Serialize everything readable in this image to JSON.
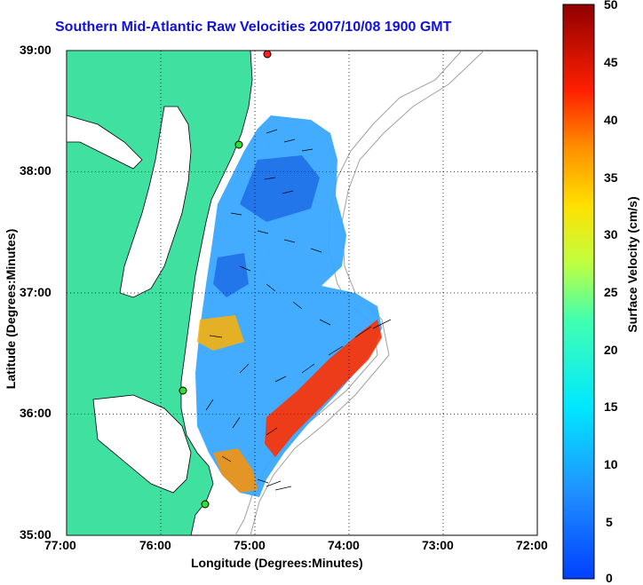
{
  "title": "Southern Mid-Atlantic Raw Velocities 2007/10/08 1900 GMT",
  "xlabel": "Longitude (Degrees:Minutes)",
  "ylabel": "Latitude (Degrees:Minutes)",
  "colorbar_label": "Surface Velocity (cm/s)",
  "x_ticks": [
    "77:00",
    "76:00",
    "75:00",
    "74:00",
    "73:00",
    "72:00"
  ],
  "y_ticks": [
    "39:00",
    "38:00",
    "37:00",
    "36:00",
    "35:00"
  ],
  "colorbar_ticks": [
    "50",
    "45",
    "40",
    "35",
    "30",
    "25",
    "20",
    "15",
    "10",
    "5",
    "0"
  ],
  "colors": {
    "land": "#40e0a0",
    "title": "#1010e0",
    "bathymetry": "#a0a0a0"
  },
  "map": {
    "lon_range": [
      -77,
      -72
    ],
    "lat_range": [
      35,
      39
    ],
    "grid": true,
    "colormap": "jet",
    "value_range_cm_s": [
      0,
      50
    ]
  }
}
